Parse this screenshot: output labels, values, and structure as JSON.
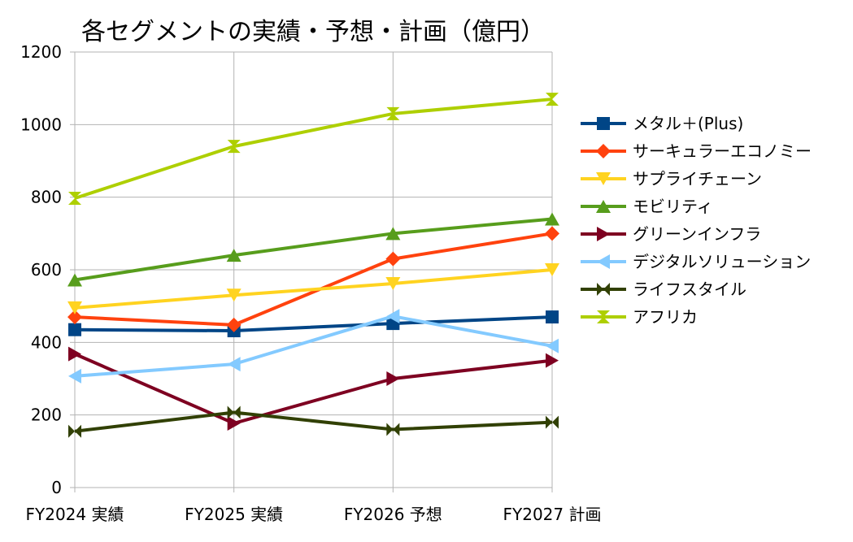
{
  "chart_data": {
    "type": "line",
    "title": "各セグメントの実績・予想・計画（億円）",
    "categories": [
      "FY2024 実績",
      "FY2025 実績",
      "FY2026 予想",
      "FY2027 計画"
    ],
    "ylim": [
      0,
      1200
    ],
    "yticks": [
      0,
      200,
      400,
      600,
      800,
      1000,
      1200
    ],
    "grid": true,
    "legend_position": "right",
    "series": [
      {
        "name": "メタル＋(Plus)",
        "values": [
          435,
          432,
          452,
          470
        ],
        "color": "#004586",
        "marker": "square"
      },
      {
        "name": "サーキュラーエコノミー",
        "values": [
          470,
          448,
          630,
          700
        ],
        "color": "#ff420e",
        "marker": "diamond"
      },
      {
        "name": "サプライチェーン",
        "values": [
          495,
          530,
          562,
          600
        ],
        "color": "#ffd320",
        "marker": "triangle-down"
      },
      {
        "name": "モビリティ",
        "values": [
          572,
          640,
          700,
          740
        ],
        "color": "#579d1c",
        "marker": "triangle-up"
      },
      {
        "name": "グリーンインフラ",
        "values": [
          368,
          177,
          300,
          350
        ],
        "color": "#7e0021",
        "marker": "triangle-right"
      },
      {
        "name": "デジタルソリューション",
        "values": [
          307,
          340,
          472,
          390
        ],
        "color": "#83caff",
        "marker": "triangle-left"
      },
      {
        "name": "ライフスタイル",
        "values": [
          155,
          207,
          160,
          180
        ],
        "color": "#314004",
        "marker": "bowtie"
      },
      {
        "name": "アフリカ",
        "values": [
          797,
          940,
          1030,
          1070
        ],
        "color": "#aecf00",
        "marker": "hourglass"
      }
    ]
  }
}
